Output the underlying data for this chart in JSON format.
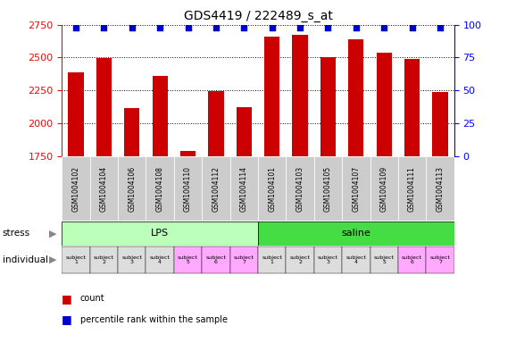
{
  "title": "GDS4419 / 222489_s_at",
  "samples": [
    "GSM1004102",
    "GSM1004104",
    "GSM1004106",
    "GSM1004108",
    "GSM1004110",
    "GSM1004112",
    "GSM1004114",
    "GSM1004101",
    "GSM1004103",
    "GSM1004105",
    "GSM1004107",
    "GSM1004109",
    "GSM1004111",
    "GSM1004113"
  ],
  "counts": [
    2390,
    2495,
    2120,
    2360,
    1790,
    2245,
    2125,
    2660,
    2670,
    2500,
    2640,
    2535,
    2490,
    2240
  ],
  "bar_color": "#cc0000",
  "dot_color": "#0000cc",
  "ylim_left": [
    1750,
    2750
  ],
  "ylim_right": [
    0,
    100
  ],
  "yticks_left": [
    1750,
    2000,
    2250,
    2500,
    2750
  ],
  "yticks_right": [
    0,
    25,
    50,
    75,
    100
  ],
  "stress_groups": [
    {
      "label": "LPS",
      "start": 0,
      "end": 7,
      "color": "#bbffbb"
    },
    {
      "label": "saline",
      "start": 7,
      "end": 14,
      "color": "#44dd44"
    }
  ],
  "subject_labels": [
    "subject\n1",
    "subject\n2",
    "subject\n3",
    "subject\n4",
    "subject\n5",
    "subject\n6",
    "subject\n7",
    "subject\n1",
    "subject\n2",
    "subject\n3",
    "subject\n4",
    "subject\n5",
    "subject\n6",
    "subject\n7"
  ],
  "subject_colors": [
    "#dddddd",
    "#dddddd",
    "#dddddd",
    "#dddddd",
    "#ffaaff",
    "#ffaaff",
    "#ffaaff",
    "#dddddd",
    "#dddddd",
    "#dddddd",
    "#dddddd",
    "#dddddd",
    "#ffaaff",
    "#ffaaff"
  ],
  "sample_bg_color": "#cccccc",
  "stress_label": "stress",
  "individual_label": "individual",
  "legend_count_color": "#cc0000",
  "legend_dot_color": "#0000cc",
  "background_color": "#ffffff"
}
